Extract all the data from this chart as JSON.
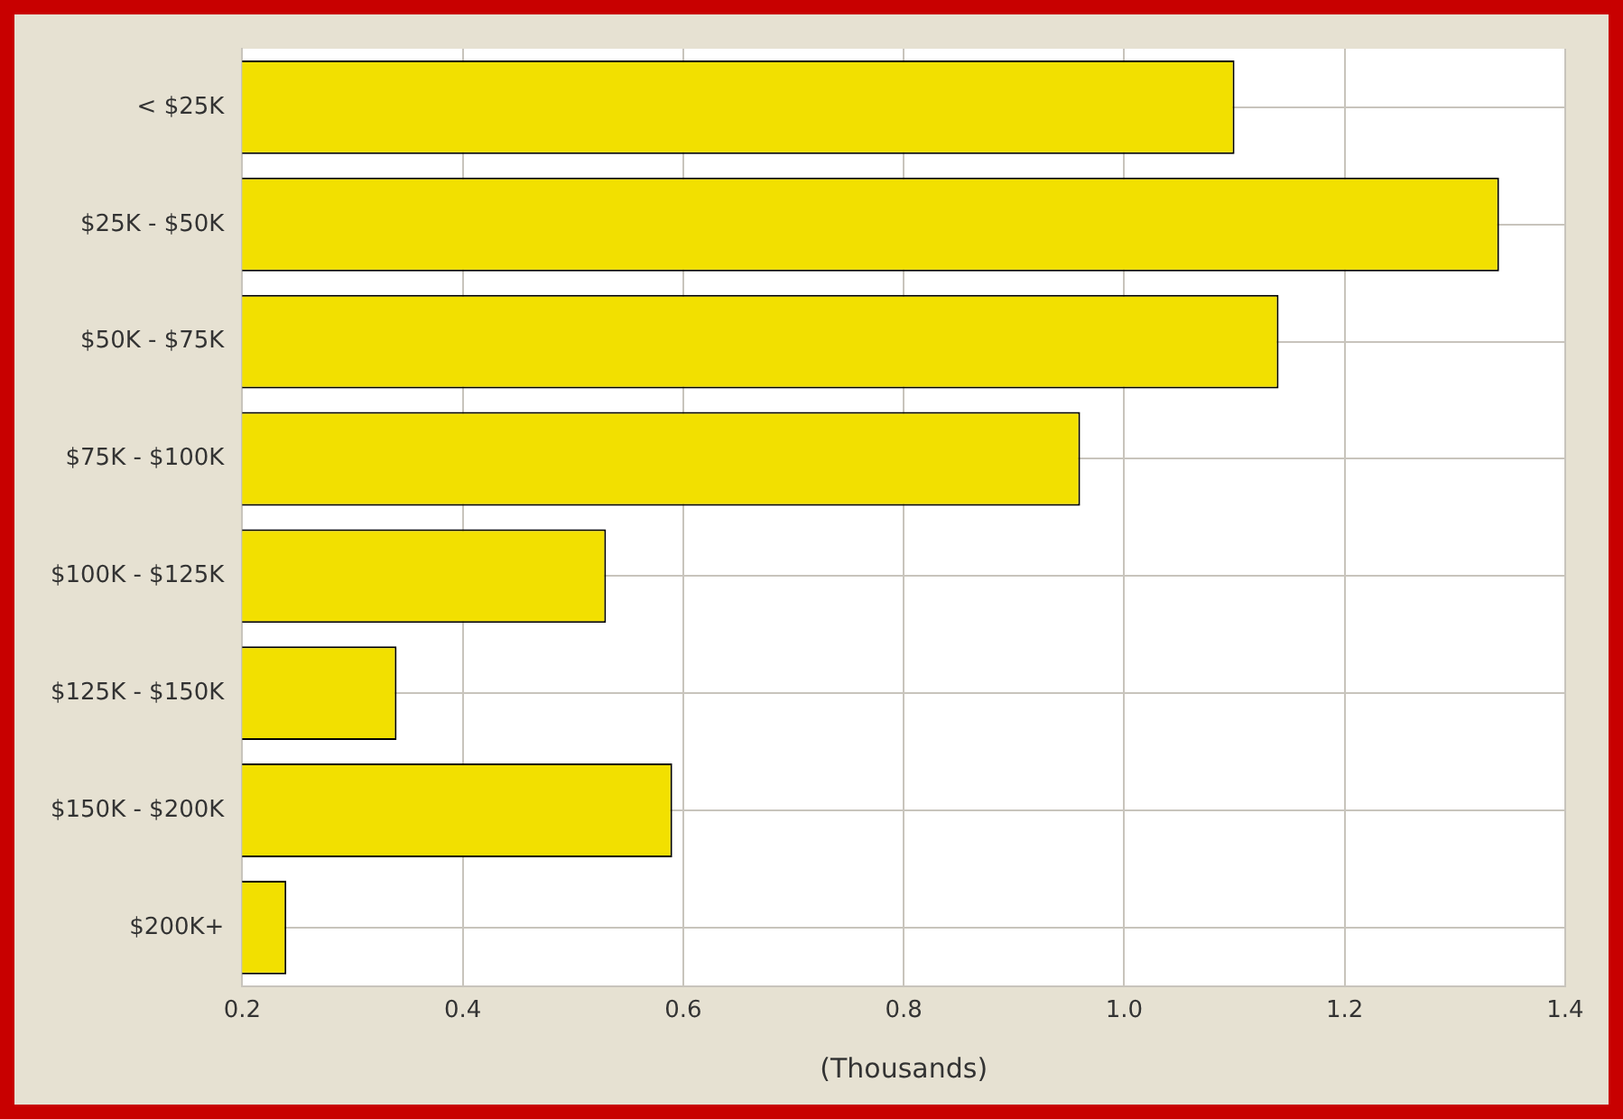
{
  "chart_data": {
    "type": "bar",
    "orientation": "horizontal",
    "xlabel": "(Thousands)",
    "categories": [
      "< $25K",
      "$25K - $50K",
      "$50K - $75K",
      "$75K - $100K",
      "$100K - $125K",
      "$125K - $150K",
      "$150K - $200K",
      "$200K+"
    ],
    "values": [
      1.1,
      1.34,
      1.14,
      0.96,
      0.53,
      0.34,
      0.59,
      0.24
    ],
    "color": "#f2e000",
    "xlim": [
      0.2,
      1.4
    ],
    "xticks": [
      0.2,
      0.4,
      0.6,
      0.8,
      {
        "value": 1.0,
        "label": "1.0"
      },
      1.2,
      1.4
    ],
    "grid": true,
    "legend": false
  }
}
